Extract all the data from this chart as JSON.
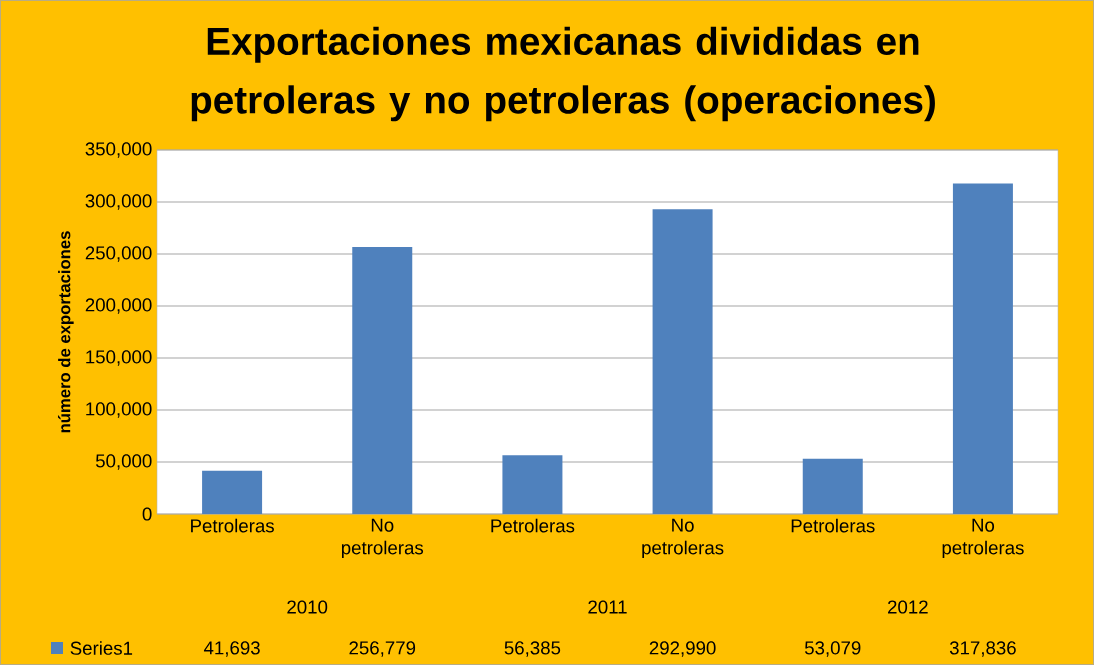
{
  "chart_data": {
    "type": "bar",
    "title": "Exportaciones mexicanas divididas en petroleras y no petroleras (operaciones)",
    "ylabel": "número de exportaciones",
    "categories": [
      "Petroleras",
      "No petroleras",
      "Petroleras",
      "No petroleras",
      "Petroleras",
      "No petroleras"
    ],
    "annotations": [
      "2010",
      "2011",
      "2012"
    ],
    "series": [
      {
        "name": "Series1",
        "color": "#4f81bd",
        "values": [
          41693,
          256779,
          56385,
          292990,
          53079,
          317836
        ],
        "value_labels": [
          "41,693",
          "256,779",
          "56,385",
          "292,990",
          "53,079",
          "317,836"
        ]
      }
    ],
    "ylim": [
      0,
      350000
    ],
    "yticks": [
      {
        "value": 0,
        "label": "0"
      },
      {
        "value": 50000,
        "label": "50,000"
      },
      {
        "value": 100000,
        "label": "100,000"
      },
      {
        "value": 150000,
        "label": "150,000"
      },
      {
        "value": 200000,
        "label": "200,000"
      },
      {
        "value": 250000,
        "label": "250,000"
      },
      {
        "value": 300000,
        "label": "300,000"
      },
      {
        "value": 350000,
        "label": "350,000"
      }
    ],
    "grid": "y",
    "legend": "bottom"
  }
}
